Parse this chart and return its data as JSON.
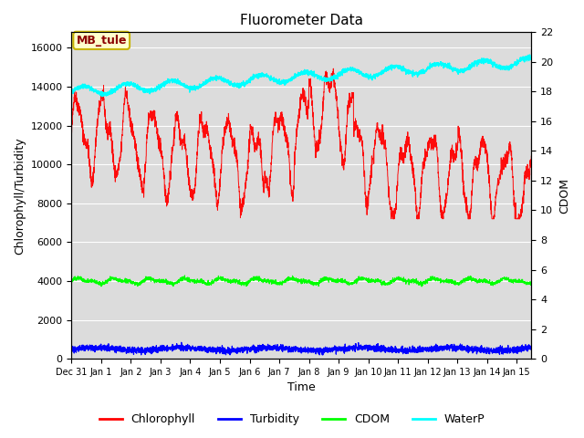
{
  "title": "Fluorometer Data",
  "xlabel": "Time",
  "ylabel_left": "Chlorophyll/Turbidity",
  "ylabel_right": "CDOM",
  "annotation_text": "MB_tule",
  "annotation_color": "#8B0000",
  "annotation_bg": "#FFFFCC",
  "annotation_border": "#C8B400",
  "ylim_left": [
    0,
    16800
  ],
  "ylim_right": [
    0,
    22
  ],
  "yticks_left": [
    0,
    2000,
    4000,
    6000,
    8000,
    10000,
    12000,
    14000,
    16000
  ],
  "yticks_right": [
    0,
    2,
    4,
    6,
    8,
    10,
    12,
    14,
    16,
    18,
    20,
    22
  ],
  "xtick_positions": [
    0,
    1,
    2,
    3,
    4,
    5,
    6,
    7,
    8,
    9,
    10,
    11,
    12,
    13,
    14,
    15
  ],
  "xtick_labels": [
    "Dec 31",
    "Jan 1",
    "Jan 2",
    "Jan 3",
    "Jan 4",
    "Jan 5",
    "Jan 6",
    "Jan 7",
    "Jan 8",
    "Jan 9",
    "Jan 10",
    "Jan 11",
    "Jan 12",
    "Jan 13",
    "Jan 14",
    "Jan 15"
  ],
  "xlim": [
    0,
    15.5
  ],
  "chlorophyll_color": "red",
  "turbidity_color": "blue",
  "cdom_color": "lime",
  "waterp_color": "cyan",
  "plot_bg_color": "#DCDCDC",
  "fig_bg_color": "white",
  "legend_labels": [
    "Chlorophyll",
    "Turbidity",
    "CDOM",
    "WaterP"
  ],
  "legend_colors": [
    "red",
    "blue",
    "lime",
    "cyan"
  ],
  "title_fontsize": 11,
  "axis_label_fontsize": 9,
  "tick_fontsize": 8,
  "legend_fontsize": 9
}
